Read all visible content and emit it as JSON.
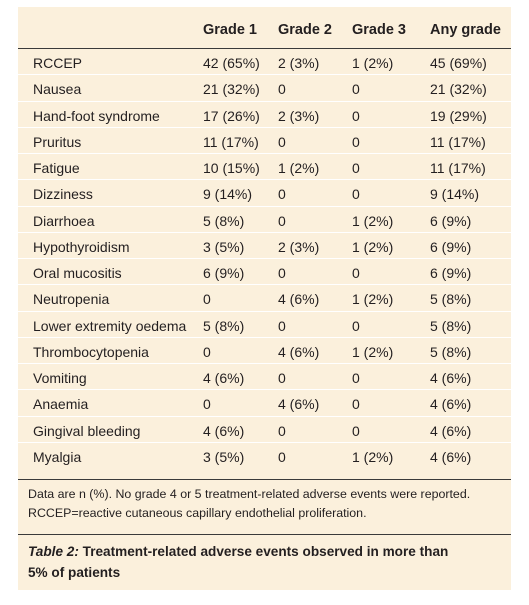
{
  "table": {
    "headers": [
      "",
      "Grade 1",
      "Grade 2",
      "Grade 3",
      "Any grade"
    ],
    "rows": [
      [
        "RCCEP",
        "42 (65%)",
        "2 (3%)",
        "1 (2%)",
        "45 (69%)"
      ],
      [
        "Nausea",
        "21 (32%)",
        "0",
        "0",
        "21 (32%)"
      ],
      [
        "Hand-foot syndrome",
        "17 (26%)",
        "2 (3%)",
        "0",
        "19 (29%)"
      ],
      [
        "Pruritus",
        "11 (17%)",
        "0",
        "0",
        "11 (17%)"
      ],
      [
        "Fatigue",
        "10 (15%)",
        "1 (2%)",
        "0",
        "11 (17%)"
      ],
      [
        "Dizziness",
        "9 (14%)",
        "0",
        "0",
        "9 (14%)"
      ],
      [
        "Diarrhoea",
        "5 (8%)",
        "0",
        "1 (2%)",
        "6 (9%)"
      ],
      [
        "Hypothyroidism",
        "3 (5%)",
        "2 (3%)",
        "1 (2%)",
        "6 (9%)"
      ],
      [
        "Oral mucositis",
        "6 (9%)",
        "0",
        "0",
        "6 (9%)"
      ],
      [
        "Neutropenia",
        "0",
        "4 (6%)",
        "1 (2%)",
        "5 (8%)"
      ],
      [
        "Lower extremity oedema",
        "5 (8%)",
        "0",
        "0",
        "5 (8%)"
      ],
      [
        "Thrombocytopenia",
        "0",
        "4 (6%)",
        "1 (2%)",
        "5 (8%)"
      ],
      [
        "Vomiting",
        "4 (6%)",
        "0",
        "0",
        "4 (6%)"
      ],
      [
        "Anaemia",
        "0",
        "4 (6%)",
        "0",
        "4 (6%)"
      ],
      [
        "Gingival bleeding",
        "4 (6%)",
        "0",
        "0",
        "4 (6%)"
      ],
      [
        "Myalgia",
        "3 (5%)",
        "0",
        "1 (2%)",
        "4 (6%)"
      ]
    ]
  },
  "footnote": {
    "line1": "Data are n (%). No grade 4 or 5 treatment-related adverse events were reported.",
    "line2": "RCCEP=reactive cutaneous capillary endothelial proliferation."
  },
  "caption": {
    "label": "Table 2:",
    "line1_rest": " Treatment-related adverse events observed in more than",
    "line2": "5% of patients"
  },
  "colors": {
    "panel_background": "#fbf0dc",
    "row_separator": "#ffffff",
    "rule": "#3a3a3a",
    "text": "#231f20"
  }
}
